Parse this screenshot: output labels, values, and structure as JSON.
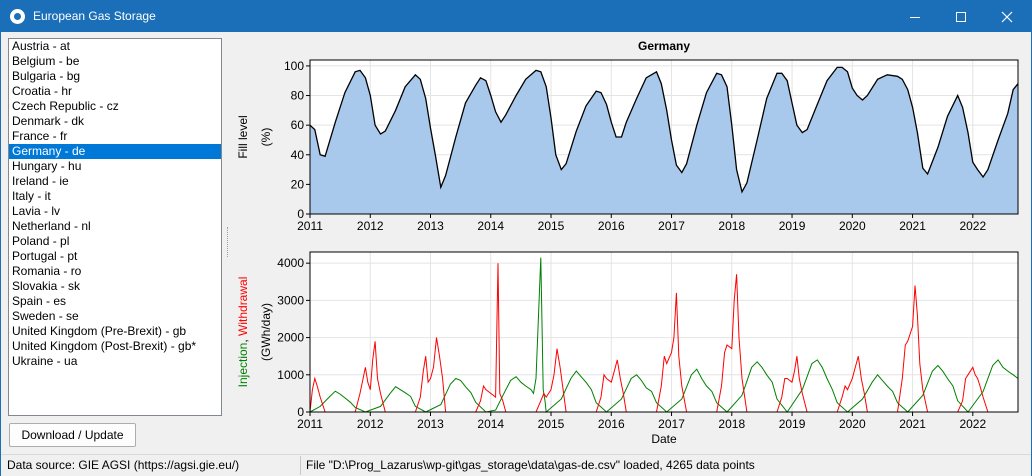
{
  "window": {
    "title": "European Gas Storage"
  },
  "countries": [
    "Austria - at",
    "Belgium - be",
    "Bulgaria - bg",
    "Croatia - hr",
    "Czech Republic - cz",
    "Denmark - dk",
    "France - fr",
    "Germany - de",
    "Hungary - hu",
    "Ireland - ie",
    "Italy - it",
    "Lavia - lv",
    "Netherland - nl",
    "Poland - pl",
    "Portugal - pt",
    "Romania - ro",
    "Slovakia - sk",
    "Spain - es",
    "Sweden - se",
    "United Kingdom (Pre-Brexit) - gb",
    "United Kingdom (Post-Brexit) - gb*",
    "Ukraine - ua"
  ],
  "selected_country": "Germany - de",
  "buttons": {
    "download": "Download / Update"
  },
  "status": {
    "source": "Data source: GIE AGSI (https://agsi.gie.eu/)",
    "file": "File \"D:\\Prog_Lazarus\\wp-git\\gas_storage\\data\\gas-de.csv\" loaded, 4265 data points"
  },
  "chart_data": [
    {
      "type": "area",
      "title": "Germany",
      "ylabel_lines": [
        "Fill level",
        "(%)"
      ],
      "xlabel": "",
      "x_ticks": [
        "2011",
        "2012",
        "2013",
        "2014",
        "2015",
        "2016",
        "2017",
        "2018",
        "2019",
        "2020",
        "2021",
        "2022"
      ],
      "y_ticks": [
        0,
        20,
        40,
        60,
        80,
        100
      ],
      "xlim": [
        2011.0,
        2022.75
      ],
      "ylim": [
        0,
        104
      ],
      "fill_color": "#a8c8ec",
      "line_color": "#000000",
      "grid": true,
      "x": [
        2011.0,
        2011.08,
        2011.17,
        2011.25,
        2011.42,
        2011.58,
        2011.75,
        2011.83,
        2011.92,
        2012.0,
        2012.08,
        2012.17,
        2012.25,
        2012.42,
        2012.58,
        2012.75,
        2012.83,
        2012.92,
        2013.0,
        2013.08,
        2013.17,
        2013.25,
        2013.42,
        2013.58,
        2013.75,
        2013.83,
        2013.92,
        2014.0,
        2014.08,
        2014.17,
        2014.25,
        2014.42,
        2014.58,
        2014.75,
        2014.83,
        2014.92,
        2015.0,
        2015.08,
        2015.17,
        2015.25,
        2015.42,
        2015.58,
        2015.75,
        2015.83,
        2015.92,
        2016.0,
        2016.08,
        2016.17,
        2016.25,
        2016.42,
        2016.58,
        2016.75,
        2016.83,
        2016.92,
        2017.0,
        2017.08,
        2017.17,
        2017.25,
        2017.42,
        2017.58,
        2017.75,
        2017.83,
        2017.92,
        2018.0,
        2018.08,
        2018.17,
        2018.25,
        2018.42,
        2018.58,
        2018.75,
        2018.83,
        2018.92,
        2019.0,
        2019.08,
        2019.17,
        2019.25,
        2019.42,
        2019.58,
        2019.75,
        2019.83,
        2019.92,
        2020.0,
        2020.08,
        2020.17,
        2020.25,
        2020.42,
        2020.58,
        2020.75,
        2020.83,
        2020.92,
        2021.0,
        2021.08,
        2021.17,
        2021.25,
        2021.42,
        2021.58,
        2021.75,
        2021.83,
        2021.92,
        2022.0,
        2022.08,
        2022.17,
        2022.25,
        2022.42,
        2022.58,
        2022.67,
        2022.75
      ],
      "y": [
        60,
        57,
        40,
        39,
        62,
        82,
        96,
        97,
        92,
        80,
        60,
        54,
        56,
        70,
        86,
        94,
        91,
        78,
        58,
        40,
        18,
        26,
        52,
        75,
        87,
        92,
        90,
        80,
        69,
        62,
        67,
        80,
        91,
        97,
        96,
        86,
        65,
        40,
        30,
        34,
        56,
        73,
        83,
        82,
        74,
        62,
        52,
        52,
        62,
        78,
        92,
        96,
        88,
        70,
        50,
        33,
        28,
        34,
        60,
        82,
        95,
        94,
        86,
        60,
        30,
        15,
        21,
        50,
        78,
        95,
        95,
        90,
        75,
        60,
        55,
        57,
        74,
        90,
        99,
        99,
        96,
        85,
        80,
        77,
        80,
        91,
        94,
        93,
        91,
        84,
        72,
        55,
        31,
        27,
        45,
        66,
        80,
        72,
        55,
        35,
        30,
        25,
        30,
        50,
        68,
        84,
        88
      ]
    },
    {
      "type": "line",
      "title": "",
      "ylabel_parts": [
        "Injection",
        ", ",
        "Withdrawal"
      ],
      "ylabel_unit": "(GWh/day)",
      "xlabel": "Date",
      "x_ticks": [
        "2011",
        "2012",
        "2013",
        "2014",
        "2015",
        "2016",
        "2017",
        "2018",
        "2019",
        "2020",
        "2021",
        "2022"
      ],
      "y_ticks": [
        0,
        1000,
        2000,
        3000,
        4000
      ],
      "xlim": [
        2011.0,
        2022.75
      ],
      "ylim": [
        0,
        4300
      ],
      "grid": true,
      "series": [
        {
          "name": "Injection",
          "color": "#008000",
          "x": [
            2011.0,
            2011.17,
            2011.33,
            2011.42,
            2011.5,
            2011.58,
            2011.67,
            2011.75,
            2011.92,
            2012.17,
            2012.33,
            2012.42,
            2012.5,
            2012.58,
            2012.67,
            2012.75,
            2012.92,
            2013.17,
            2013.33,
            2013.42,
            2013.5,
            2013.58,
            2013.67,
            2013.75,
            2013.92,
            2014.08,
            2014.25,
            2014.33,
            2014.42,
            2014.5,
            2014.58,
            2014.67,
            2014.71,
            2014.75,
            2014.83,
            2014.87,
            2014.9,
            2014.92,
            2015.17,
            2015.33,
            2015.42,
            2015.5,
            2015.58,
            2015.67,
            2015.75,
            2015.92,
            2016.17,
            2016.33,
            2016.42,
            2016.5,
            2016.58,
            2016.67,
            2016.75,
            2016.92,
            2017.17,
            2017.33,
            2017.42,
            2017.5,
            2017.58,
            2017.67,
            2017.75,
            2017.92,
            2018.17,
            2018.33,
            2018.42,
            2018.5,
            2018.58,
            2018.67,
            2018.75,
            2018.92,
            2019.17,
            2019.33,
            2019.42,
            2019.5,
            2019.58,
            2019.67,
            2019.75,
            2019.92,
            2020.17,
            2020.33,
            2020.42,
            2020.5,
            2020.58,
            2020.67,
            2020.75,
            2020.92,
            2021.17,
            2021.33,
            2021.42,
            2021.5,
            2021.58,
            2021.67,
            2021.75,
            2021.92,
            2022.17,
            2022.33,
            2022.42,
            2022.5,
            2022.58,
            2022.67,
            2022.75
          ],
          "y": [
            0,
            150,
            420,
            560,
            480,
            380,
            260,
            120,
            0,
            150,
            500,
            680,
            600,
            520,
            420,
            150,
            0,
            200,
            750,
            900,
            850,
            680,
            520,
            260,
            0,
            50,
            600,
            850,
            950,
            800,
            700,
            600,
            500,
            900,
            4150,
            600,
            300,
            0,
            350,
            900,
            1100,
            950,
            800,
            600,
            250,
            0,
            350,
            900,
            1000,
            850,
            650,
            550,
            250,
            0,
            350,
            1000,
            1150,
            900,
            700,
            550,
            250,
            0,
            450,
            1200,
            1350,
            1200,
            1000,
            800,
            350,
            0,
            600,
            1300,
            1400,
            1200,
            900,
            600,
            250,
            0,
            350,
            800,
            1000,
            850,
            700,
            550,
            250,
            0,
            450,
            1100,
            1250,
            1100,
            900,
            700,
            300,
            0,
            550,
            1250,
            1400,
            1200,
            1100,
            1000,
            900
          ]
        },
        {
          "name": "Withdrawal",
          "color": "#ff0000",
          "x": [
            2011.0,
            2011.04,
            2011.08,
            2011.12,
            2011.17,
            2011.25,
            2011.75,
            2011.83,
            2011.92,
            2011.96,
            2012.0,
            2012.04,
            2012.08,
            2012.12,
            2012.17,
            2012.25,
            2012.75,
            2012.83,
            2012.88,
            2012.92,
            2012.96,
            2013.0,
            2013.05,
            2013.1,
            2013.15,
            2013.2,
            2013.25,
            2013.75,
            2013.83,
            2013.88,
            2013.92,
            2014.0,
            2014.08,
            2014.12,
            2014.15,
            2014.2,
            2014.25,
            2014.75,
            2014.83,
            2014.88,
            2014.92,
            2015.0,
            2015.05,
            2015.1,
            2015.15,
            2015.2,
            2015.25,
            2015.75,
            2015.83,
            2015.88,
            2015.92,
            2016.0,
            2016.05,
            2016.1,
            2016.15,
            2016.2,
            2016.25,
            2016.75,
            2016.83,
            2016.88,
            2016.92,
            2017.0,
            2017.04,
            2017.08,
            2017.12,
            2017.17,
            2017.25,
            2017.75,
            2017.83,
            2017.88,
            2017.92,
            2018.0,
            2018.04,
            2018.08,
            2018.12,
            2018.17,
            2018.25,
            2018.75,
            2018.83,
            2018.88,
            2018.92,
            2019.0,
            2019.04,
            2019.08,
            2019.12,
            2019.17,
            2019.25,
            2019.75,
            2019.83,
            2019.88,
            2019.92,
            2020.0,
            2020.05,
            2020.1,
            2020.15,
            2020.2,
            2020.25,
            2020.75,
            2020.83,
            2020.88,
            2020.92,
            2021.0,
            2021.04,
            2021.08,
            2021.12,
            2021.17,
            2021.25,
            2021.75,
            2021.83,
            2021.88,
            2021.92,
            2022.0,
            2022.04,
            2022.08,
            2022.12,
            2022.17,
            2022.25,
            2022.75
          ],
          "y": [
            0,
            600,
            900,
            700,
            400,
            0,
            0,
            500,
            1200,
            800,
            600,
            1400,
            1900,
            900,
            500,
            0,
            0,
            400,
            1100,
            1500,
            800,
            900,
            1200,
            2000,
            1500,
            900,
            0,
            0,
            300,
            700,
            600,
            500,
            400,
            4000,
            500,
            300,
            0,
            0,
            300,
            500,
            400,
            600,
            1000,
            1700,
            1200,
            600,
            0,
            0,
            400,
            1000,
            900,
            800,
            1100,
            1400,
            900,
            500,
            0,
            0,
            700,
            1500,
            1300,
            1600,
            2000,
            3200,
            1500,
            700,
            0,
            0,
            700,
            1600,
            1800,
            1700,
            3000,
            3700,
            2000,
            900,
            0,
            0,
            400,
            900,
            900,
            800,
            1100,
            1500,
            900,
            500,
            0,
            0,
            400,
            700,
            600,
            900,
            1200,
            1500,
            900,
            500,
            0,
            0,
            900,
            1800,
            1900,
            2300,
            3400,
            2600,
            1300,
            600,
            0,
            0,
            300,
            900,
            1000,
            1200,
            1000,
            900,
            700,
            400,
            0,
            0
          ]
        }
      ]
    }
  ]
}
